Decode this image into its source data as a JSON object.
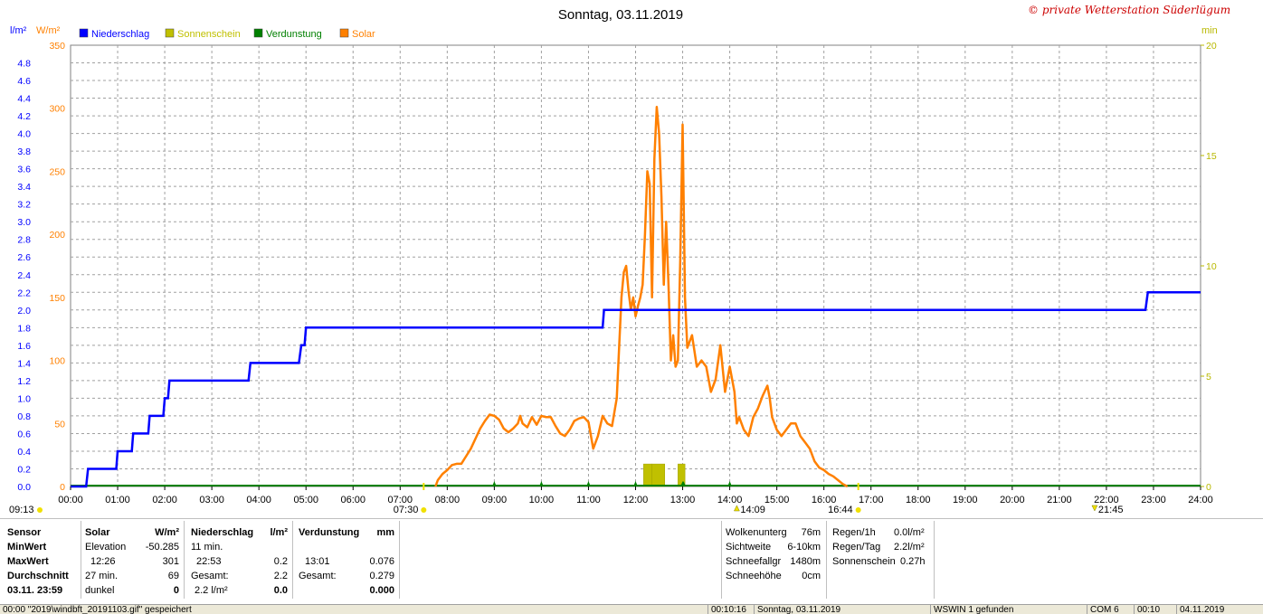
{
  "title": "Sonntag, 03.11.2019",
  "copyright": "© private Wetterstation Süderlügum",
  "unit_left_1": "l/m²",
  "unit_left_2": "W/m²",
  "unit_right": "min",
  "legend": [
    {
      "label": "Niederschlag",
      "color": "#0000ff"
    },
    {
      "label": "Sonnenschein",
      "color": "#c0c000"
    },
    {
      "label": "Verdunstung",
      "color": "#008000"
    },
    {
      "label": "Solar",
      "color": "#ff8000"
    }
  ],
  "sun_markers": {
    "left": "09:13",
    "sunrise": "07:30",
    "noon": "14:09",
    "sunset": "16:44",
    "moon": "21:45"
  },
  "chart_data": {
    "type": "line",
    "title": "Sonntag, 03.11.2019",
    "x_ticks": [
      "00:00",
      "01:00",
      "02:00",
      "03:00",
      "04:00",
      "05:00",
      "06:00",
      "07:00",
      "08:00",
      "09:00",
      "10:00",
      "11:00",
      "12:00",
      "13:00",
      "14:00",
      "15:00",
      "16:00",
      "17:00",
      "18:00",
      "19:00",
      "20:00",
      "21:00",
      "22:00",
      "23:00",
      "24:00"
    ],
    "y_left_precip_ticks": [
      "0.0",
      "0.2",
      "0.4",
      "0.6",
      "0.8",
      "1.0",
      "1.2",
      "1.4",
      "1.6",
      "1.8",
      "2.0",
      "2.2",
      "2.4",
      "2.6",
      "2.8",
      "3.0",
      "3.2",
      "3.4",
      "3.6",
      "3.8",
      "4.0",
      "4.2",
      "4.4",
      "4.6",
      "4.8"
    ],
    "y_left_precip_range": [
      0,
      5.0
    ],
    "y_left_solar_ticks": [
      "0",
      "50",
      "100",
      "150",
      "200",
      "250",
      "300",
      "350"
    ],
    "y_left_solar_range": [
      0,
      350
    ],
    "y_right_ticks": [
      "0",
      "5",
      "10",
      "15",
      "20"
    ],
    "y_right_range": [
      0,
      20
    ],
    "grid": true,
    "legend_position": "top-left",
    "series": [
      {
        "name": "Niederschlag",
        "axis": "precip",
        "color": "#0000ff",
        "step": true,
        "points": [
          [
            0.0,
            0.0
          ],
          [
            0.33,
            0.0
          ],
          [
            0.37,
            0.2
          ],
          [
            0.97,
            0.2
          ],
          [
            1.0,
            0.4
          ],
          [
            1.3,
            0.4
          ],
          [
            1.33,
            0.6
          ],
          [
            1.65,
            0.6
          ],
          [
            1.68,
            0.8
          ],
          [
            1.97,
            0.8
          ],
          [
            2.0,
            1.0
          ],
          [
            2.07,
            1.0
          ],
          [
            2.1,
            1.2
          ],
          [
            3.78,
            1.2
          ],
          [
            3.82,
            1.4
          ],
          [
            4.85,
            1.4
          ],
          [
            4.9,
            1.6
          ],
          [
            4.97,
            1.6
          ],
          [
            5.0,
            1.8
          ],
          [
            11.3,
            1.8
          ],
          [
            11.33,
            2.0
          ],
          [
            22.83,
            2.0
          ],
          [
            22.88,
            2.2
          ],
          [
            24.0,
            2.2
          ]
        ]
      },
      {
        "name": "Solar",
        "axis": "solar",
        "color": "#ff8000",
        "points": [
          [
            7.75,
            0
          ],
          [
            7.8,
            5
          ],
          [
            7.9,
            10
          ],
          [
            8.0,
            13
          ],
          [
            8.1,
            17
          ],
          [
            8.2,
            18
          ],
          [
            8.3,
            18
          ],
          [
            8.4,
            24
          ],
          [
            8.5,
            30
          ],
          [
            8.6,
            38
          ],
          [
            8.7,
            46
          ],
          [
            8.8,
            52
          ],
          [
            8.9,
            57
          ],
          [
            9.0,
            56
          ],
          [
            9.1,
            53
          ],
          [
            9.2,
            46
          ],
          [
            9.3,
            43
          ],
          [
            9.4,
            46
          ],
          [
            9.5,
            50
          ],
          [
            9.55,
            56
          ],
          [
            9.6,
            50
          ],
          [
            9.7,
            47
          ],
          [
            9.8,
            55
          ],
          [
            9.9,
            49
          ],
          [
            10.0,
            56
          ],
          [
            10.1,
            55
          ],
          [
            10.2,
            55
          ],
          [
            10.3,
            48
          ],
          [
            10.4,
            42
          ],
          [
            10.5,
            40
          ],
          [
            10.6,
            45
          ],
          [
            10.7,
            52
          ],
          [
            10.8,
            54
          ],
          [
            10.9,
            55
          ],
          [
            11.0,
            51
          ],
          [
            11.1,
            30
          ],
          [
            11.2,
            40
          ],
          [
            11.3,
            56
          ],
          [
            11.4,
            50
          ],
          [
            11.5,
            48
          ],
          [
            11.6,
            70
          ],
          [
            11.7,
            150
          ],
          [
            11.75,
            170
          ],
          [
            11.8,
            175
          ],
          [
            11.85,
            155
          ],
          [
            11.9,
            140
          ],
          [
            11.95,
            150
          ],
          [
            12.0,
            135
          ],
          [
            12.05,
            143
          ],
          [
            12.1,
            150
          ],
          [
            12.15,
            160
          ],
          [
            12.2,
            200
          ],
          [
            12.25,
            250
          ],
          [
            12.3,
            240
          ],
          [
            12.35,
            150
          ],
          [
            12.4,
            260
          ],
          [
            12.45,
            301
          ],
          [
            12.5,
            280
          ],
          [
            12.55,
            230
          ],
          [
            12.6,
            160
          ],
          [
            12.65,
            210
          ],
          [
            12.7,
            160
          ],
          [
            12.75,
            100
          ],
          [
            12.8,
            120
          ],
          [
            12.85,
            95
          ],
          [
            12.9,
            100
          ],
          [
            12.95,
            180
          ],
          [
            13.0,
            287
          ],
          [
            13.05,
            150
          ],
          [
            13.1,
            110
          ],
          [
            13.2,
            120
          ],
          [
            13.3,
            95
          ],
          [
            13.4,
            100
          ],
          [
            13.5,
            95
          ],
          [
            13.6,
            75
          ],
          [
            13.7,
            85
          ],
          [
            13.8,
            112
          ],
          [
            13.9,
            75
          ],
          [
            14.0,
            95
          ],
          [
            14.1,
            75
          ],
          [
            14.15,
            50
          ],
          [
            14.2,
            55
          ],
          [
            14.3,
            45
          ],
          [
            14.4,
            40
          ],
          [
            14.5,
            55
          ],
          [
            14.6,
            62
          ],
          [
            14.7,
            72
          ],
          [
            14.8,
            80
          ],
          [
            14.85,
            70
          ],
          [
            14.9,
            55
          ],
          [
            15.0,
            45
          ],
          [
            15.1,
            40
          ],
          [
            15.2,
            45
          ],
          [
            15.3,
            50
          ],
          [
            15.4,
            50
          ],
          [
            15.5,
            40
          ],
          [
            15.6,
            35
          ],
          [
            15.7,
            30
          ],
          [
            15.8,
            20
          ],
          [
            15.9,
            15
          ],
          [
            16.0,
            13
          ],
          [
            16.1,
            10
          ],
          [
            16.2,
            8
          ],
          [
            16.3,
            5
          ],
          [
            16.4,
            2
          ],
          [
            16.5,
            0
          ]
        ]
      },
      {
        "name": "Sonnenschein",
        "axis": "minutes",
        "color": "#c0c000",
        "bars": [
          [
            12.17,
            12.35,
            1.0
          ],
          [
            12.35,
            12.62,
            1.0
          ],
          [
            12.9,
            13.05,
            1.0
          ]
        ]
      },
      {
        "name": "Verdunstung",
        "axis": "precip",
        "color": "#008000",
        "ticks": [
          9.0,
          10.0,
          11.0,
          12.0,
          13.0,
          13.02,
          14.0
        ]
      }
    ]
  },
  "table": {
    "sensor": {
      "header": "Sensor",
      "rows": [
        "MinWert",
        "MaxWert",
        "Durchschnitt",
        "03.11.  23:59"
      ]
    },
    "solar": {
      "header": "Solar",
      "unit": "W/m²",
      "rows": [
        [
          "Elevation",
          "-50.285"
        ],
        [
          "12:26",
          "301"
        ],
        [
          "27 min.",
          "69"
        ],
        [
          "dunkel",
          "0"
        ]
      ]
    },
    "niederschlag": {
      "header": "Niederschlag",
      "unit": "l/m²",
      "rows": [
        [
          "11 min.",
          ""
        ],
        [
          "22:53",
          "0.2"
        ],
        [
          "Gesamt:",
          "2.2"
        ],
        [
          "2.2 l/m²",
          "0.0"
        ]
      ]
    },
    "verdunstung": {
      "header": "Verdunstung",
      "unit": "mm",
      "rows": [
        [
          "",
          ""
        ],
        [
          "13:01",
          "0.076"
        ],
        [
          "Gesamt:",
          "0.279"
        ],
        [
          "",
          "0.000"
        ]
      ]
    },
    "cloud": [
      [
        "Wolkenunterg",
        "76m"
      ],
      [
        "Sichtweite",
        "6-10km"
      ],
      [
        "Schneefallgr",
        "1480m"
      ],
      [
        "Schneehöhe",
        "0cm"
      ]
    ],
    "rain": [
      [
        "Regen/1h",
        "0.0l/m²"
      ],
      [
        "Regen/Tag",
        "2.2l/m²"
      ],
      [
        "Sonnenschein",
        "0.27h"
      ]
    ]
  },
  "statusbar": {
    "f1": "00:00  \"2019\\windbft_20191103.gif\" gespeichert",
    "f2": "00:10:16",
    "f3": "Sonntag, 03.11.2019",
    "f4": "WSWIN 1 gefunden",
    "f5": "COM 6",
    "f6": "00:10",
    "f7": "04.11.2019"
  }
}
